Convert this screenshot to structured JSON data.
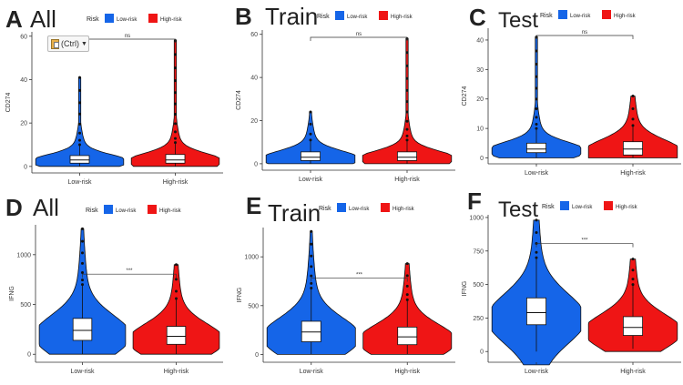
{
  "chart_data": [
    {
      "type": "violin",
      "panel": "A",
      "title": "All",
      "xlabel": "",
      "ylabel": "CD274",
      "categories": [
        "Low-risk",
        "High-risk"
      ],
      "yticks": [
        0,
        20,
        40,
        60
      ],
      "ylim": [
        -3,
        62
      ],
      "legend": {
        "title": "Risk",
        "items": [
          "Low-risk",
          "High-risk"
        ],
        "position": "top"
      },
      "series": [
        {
          "name": "Low-risk",
          "color": "#1565e8",
          "median": 3,
          "q1": 1.5,
          "q3": 5,
          "whisker_low": 0,
          "whisker_high": 10,
          "min": 0,
          "max": 41
        },
        {
          "name": "High-risk",
          "color": "#ef1515",
          "median": 3,
          "q1": 1.5,
          "q3": 5.5,
          "whisker_low": 0,
          "whisker_high": 11,
          "min": 0,
          "max": 58
        }
      ],
      "significance": "ns"
    },
    {
      "type": "violin",
      "panel": "B",
      "title": "Train",
      "xlabel": "",
      "ylabel": "CD274",
      "categories": [
        "Low-risk",
        "High-risk"
      ],
      "yticks": [
        0,
        20,
        40,
        60
      ],
      "ylim": [
        -3,
        62
      ],
      "legend": {
        "title": "Risk",
        "items": [
          "Low-risk",
          "High-risk"
        ],
        "position": "top"
      },
      "series": [
        {
          "name": "Low-risk",
          "color": "#1565e8",
          "median": 3,
          "q1": 1.5,
          "q3": 5.5,
          "whisker_low": 0,
          "whisker_high": 11,
          "min": 0,
          "max": 24
        },
        {
          "name": "High-risk",
          "color": "#ef1515",
          "median": 3,
          "q1": 1.5,
          "q3": 5.5,
          "whisker_low": 0,
          "whisker_high": 11,
          "min": 0,
          "max": 58
        }
      ],
      "significance": "ns"
    },
    {
      "type": "violin",
      "panel": "C",
      "title": "Test",
      "xlabel": "",
      "ylabel": "CD274",
      "categories": [
        "Low-risk",
        "High-risk"
      ],
      "yticks": [
        0,
        10,
        20,
        30,
        40
      ],
      "ylim": [
        -2,
        44
      ],
      "legend": {
        "title": "Risk",
        "items": [
          "Low-risk",
          "High-risk"
        ],
        "position": "top"
      },
      "series": [
        {
          "name": "Low-risk",
          "color": "#1565e8",
          "median": 3,
          "q1": 1.8,
          "q3": 5,
          "whisker_low": 0,
          "whisker_high": 10,
          "min": 0,
          "max": 41
        },
        {
          "name": "High-risk",
          "color": "#ef1515",
          "median": 3,
          "q1": 1,
          "q3": 5.5,
          "whisker_low": 0,
          "whisker_high": 11,
          "min": 0,
          "max": 21
        }
      ],
      "significance": "ns"
    },
    {
      "type": "violin",
      "panel": "D",
      "title": "All",
      "xlabel": "",
      "ylabel": "IFNG",
      "categories": [
        "Low-risk",
        "High-risk"
      ],
      "yticks": [
        0,
        500,
        1000
      ],
      "ylim": [
        -80,
        1300
      ],
      "legend": {
        "title": "Risk",
        "items": [
          "Low-risk",
          "High-risk"
        ],
        "position": "top"
      },
      "series": [
        {
          "name": "Low-risk",
          "color": "#1565e8",
          "median": 240,
          "q1": 140,
          "q3": 360,
          "whisker_low": 0,
          "whisker_high": 700,
          "min": 0,
          "max": 1260
        },
        {
          "name": "High-risk",
          "color": "#ef1515",
          "median": 180,
          "q1": 100,
          "q3": 280,
          "whisker_low": 0,
          "whisker_high": 560,
          "min": 0,
          "max": 900
        }
      ],
      "significance": "***"
    },
    {
      "type": "violin",
      "panel": "E",
      "title": "Train",
      "xlabel": "",
      "ylabel": "IFNG",
      "categories": [
        "Low-risk",
        "High-risk"
      ],
      "yticks": [
        0,
        500,
        1000
      ],
      "ylim": [
        -80,
        1300
      ],
      "legend": {
        "title": "Risk",
        "items": [
          "Low-risk",
          "High-risk"
        ],
        "position": "top"
      },
      "series": [
        {
          "name": "Low-risk",
          "color": "#1565e8",
          "median": 230,
          "q1": 130,
          "q3": 340,
          "whisker_low": 0,
          "whisker_high": 680,
          "min": 0,
          "max": 1260
        },
        {
          "name": "High-risk",
          "color": "#ef1515",
          "median": 180,
          "q1": 100,
          "q3": 280,
          "whisker_low": 0,
          "whisker_high": 560,
          "min": 0,
          "max": 930
        }
      ],
      "significance": "***"
    },
    {
      "type": "violin",
      "panel": "F",
      "title": "Test",
      "xlabel": "",
      "ylabel": "IFNG",
      "categories": [
        "Low-risk",
        "High-risk"
      ],
      "yticks": [
        0,
        250,
        500,
        750,
        1000
      ],
      "ylim": [
        -80,
        1020
      ],
      "legend": {
        "title": "Risk",
        "items": [
          "Low-risk",
          "High-risk"
        ],
        "position": "top"
      },
      "series": [
        {
          "name": "Low-risk",
          "color": "#1565e8",
          "median": 290,
          "q1": 200,
          "q3": 400,
          "whisker_low": 0,
          "whisker_high": 700,
          "min": -100,
          "max": 980
        },
        {
          "name": "High-risk",
          "color": "#ef1515",
          "median": 180,
          "q1": 120,
          "q3": 260,
          "whisker_low": 20,
          "whisker_high": 500,
          "min": 0,
          "max": 690
        }
      ],
      "significance": "***"
    }
  ],
  "overlay": {
    "paste_label": "(Ctrl)"
  }
}
